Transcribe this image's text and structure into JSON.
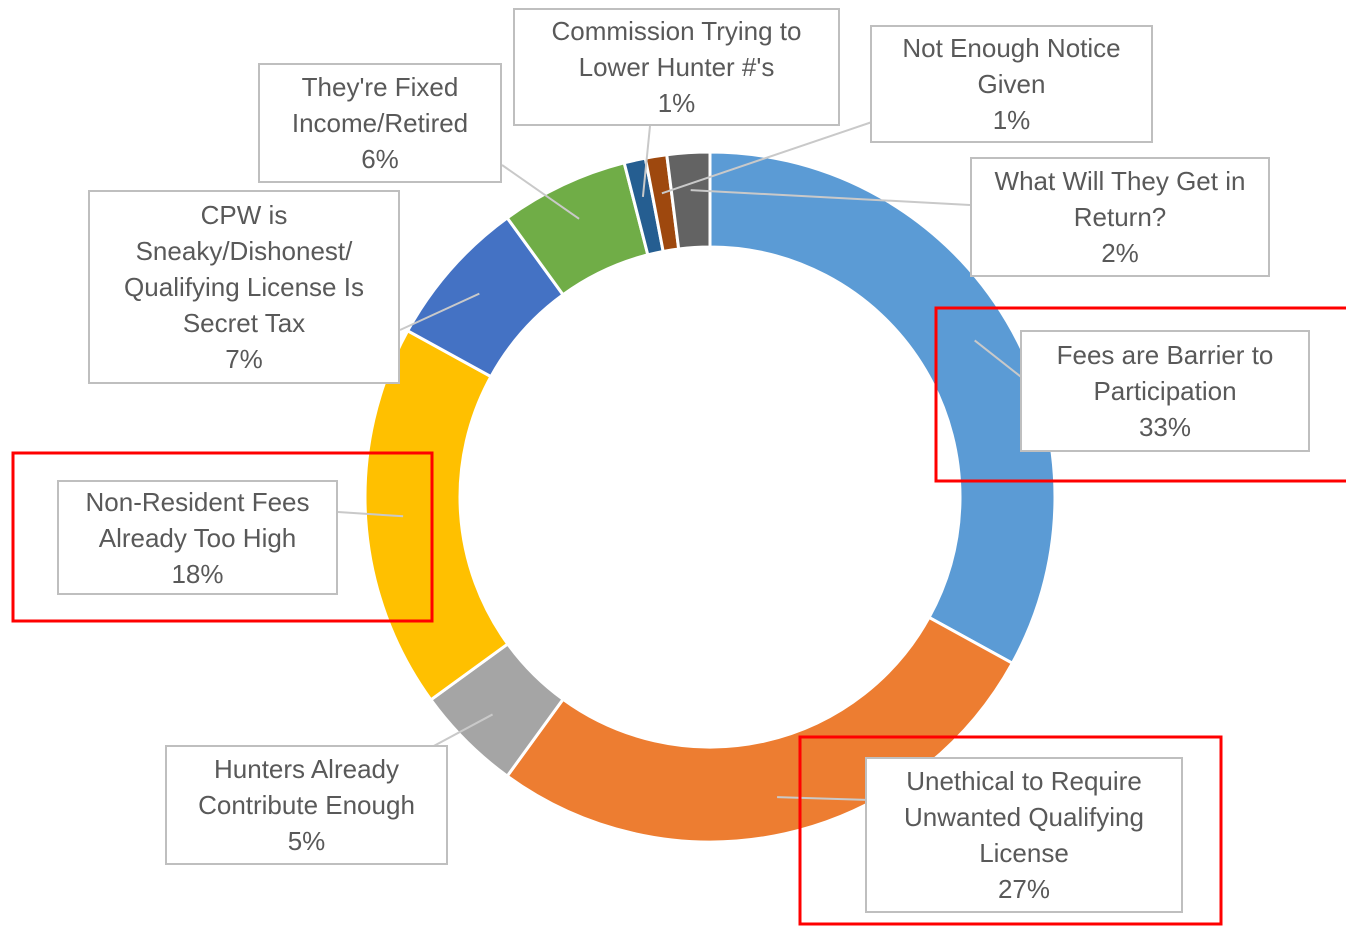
{
  "chart_data": {
    "type": "donut",
    "categories": [
      "Fees are Barrier to Participation",
      "Unethical to Require Unwanted Qualifying License",
      "Hunters Already Contribute Enough",
      "Non-Resident Fees Already Too High",
      "CPW is Sneaky/Dishonest/ Qualifying License Is Secret Tax",
      "They're Fixed Income/Retired",
      "Commission Trying to Lower Hunter #'s",
      "Not Enough Notice Given",
      "What Will They Get in Return?"
    ],
    "values": [
      33,
      27,
      5,
      18,
      7,
      6,
      1,
      1,
      2
    ],
    "value_labels": [
      "33%",
      "27%",
      "5%",
      "18%",
      "7%",
      "6%",
      "1%",
      "1%",
      "2%"
    ],
    "colors": [
      "#5b9bd5",
      "#ed7d31",
      "#a5a5a5",
      "#ffc000",
      "#4472c4",
      "#70ad47",
      "#255e91",
      "#9e480e",
      "#636363"
    ]
  }
}
